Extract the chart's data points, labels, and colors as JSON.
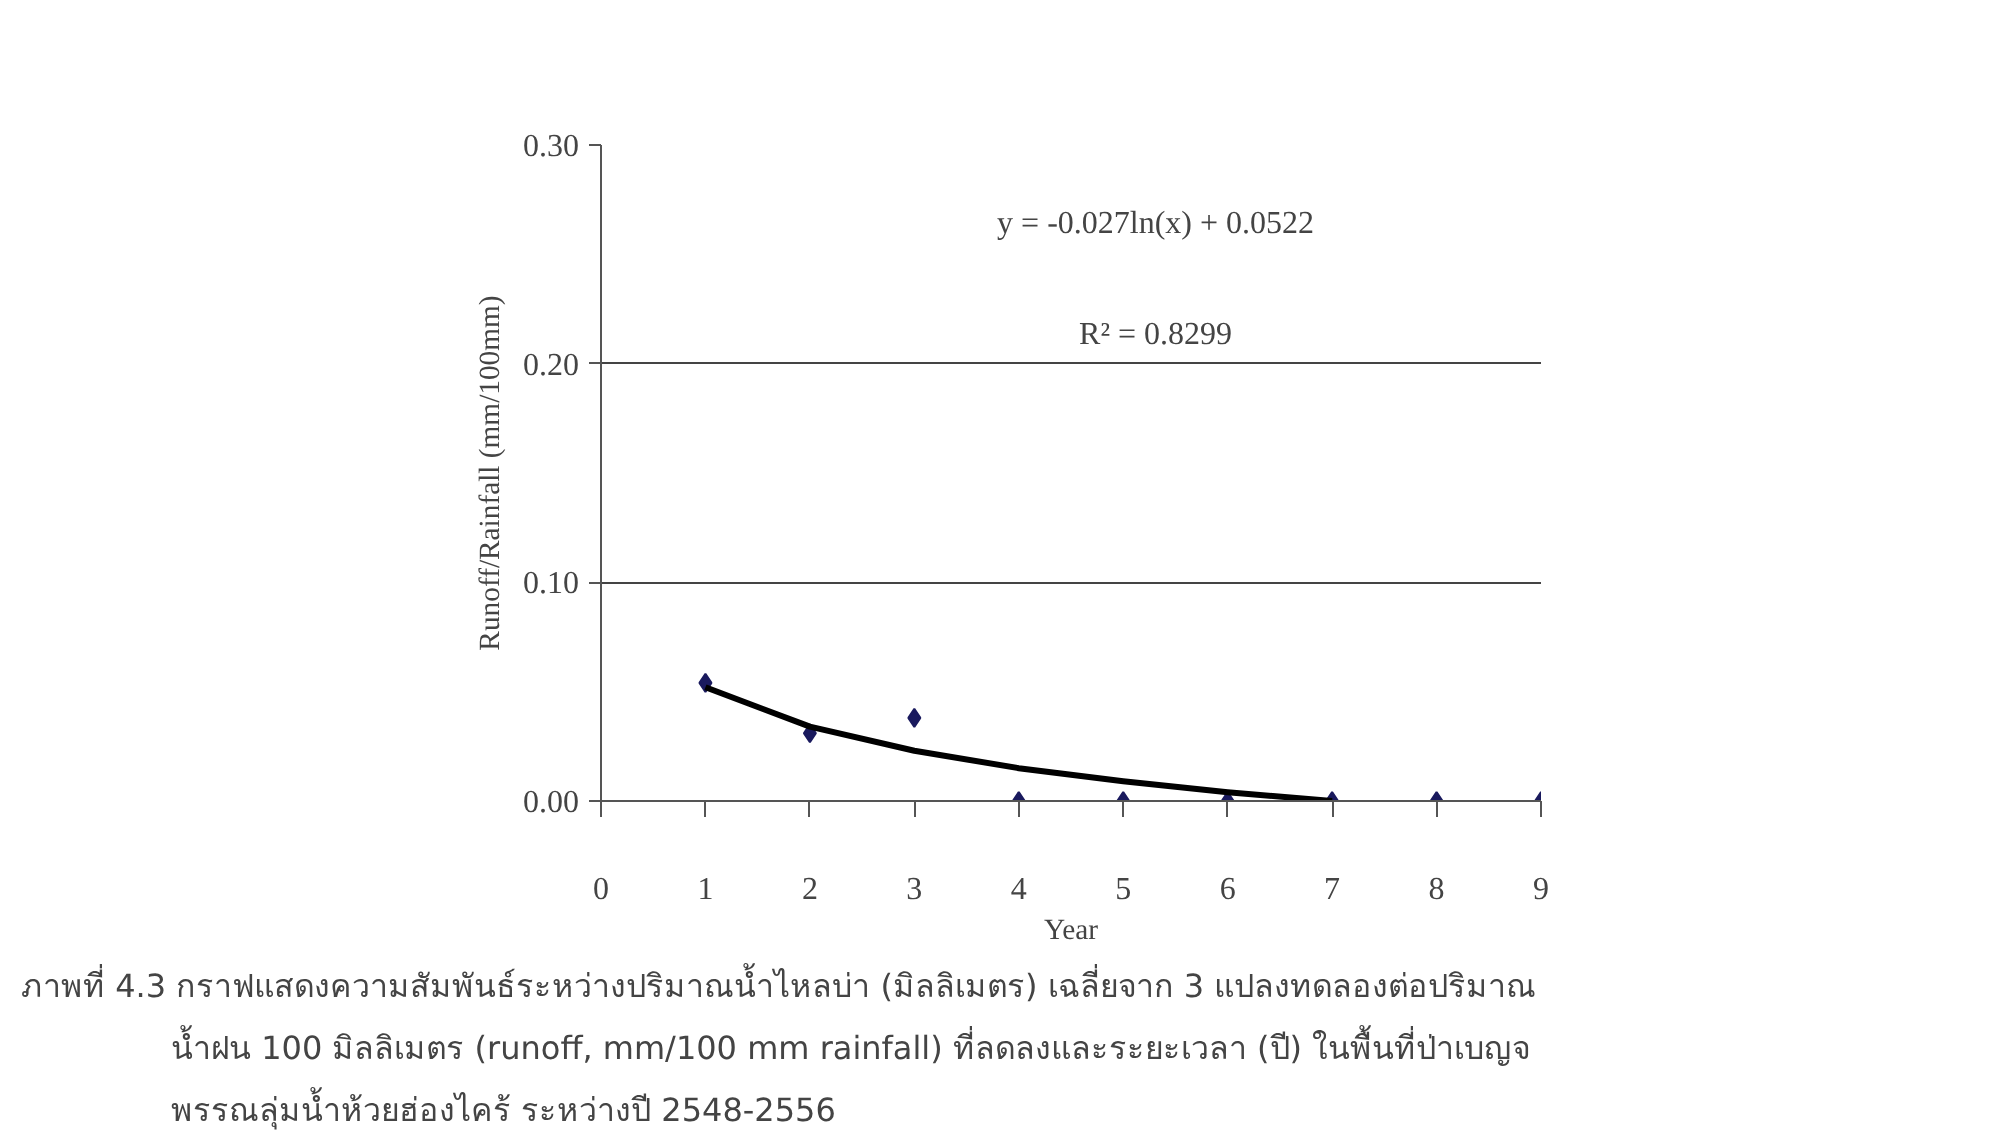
{
  "chart_data": {
    "type": "scatter",
    "xlabel": "Year",
    "ylabel": "Runoff/Rainfall (mm/100mm)",
    "x": [
      1,
      2,
      3,
      4,
      5,
      6,
      7,
      8,
      9
    ],
    "series": [
      {
        "color": "#1a1a5e",
        "marker": "diamond",
        "values": [
          0.054,
          0.031,
          0.038,
          0.0,
          0.0,
          0.0,
          0.0,
          0.0,
          0.0
        ]
      },
      {
        "type": "line",
        "color": "#000000",
        "marker": "none",
        "line_style": "solid",
        "x": [
          1,
          2,
          3,
          4,
          5,
          6,
          7
        ],
        "values": [
          0.052,
          0.034,
          0.023,
          0.015,
          0.009,
          0.004,
          0.0
        ]
      }
    ],
    "xlim": [
      0,
      9
    ],
    "xticks": [
      0,
      1,
      2,
      3,
      4,
      5,
      6,
      7,
      8,
      9
    ],
    "ylim": [
      0,
      0.3
    ],
    "yticks": [
      {
        "value": 0,
        "label": "0.00"
      },
      {
        "value": 0.1,
        "label": "0.10"
      },
      {
        "value": 0.2,
        "label": "0.20"
      },
      {
        "value": 0.3,
        "label": "0.30"
      }
    ],
    "grid": "y",
    "annotations": [
      "y = -0.027ln(x) + 0.0522",
      "R² = 0.8299",
      "ภาพที่ 4.3  กราฟแสดงความสัมพันธ์ระหว่างปริมาณน้ำไหลบ่า (มิลลิเมตร) เฉลี่ยจาก 3 แปลงทดลองต่อปริมาณ",
      "น้ำฝน 100 มิลลิเมตร (runoff, mm/100 mm rainfall) ที่ลดลงและระยะเวลา (ปี) ในพื้นที่ป่าเบญจ",
      "พรรณลุ่มน้ำห้วยฮ่องไคร้ ระหว่างปี 2548-2556"
    ]
  }
}
